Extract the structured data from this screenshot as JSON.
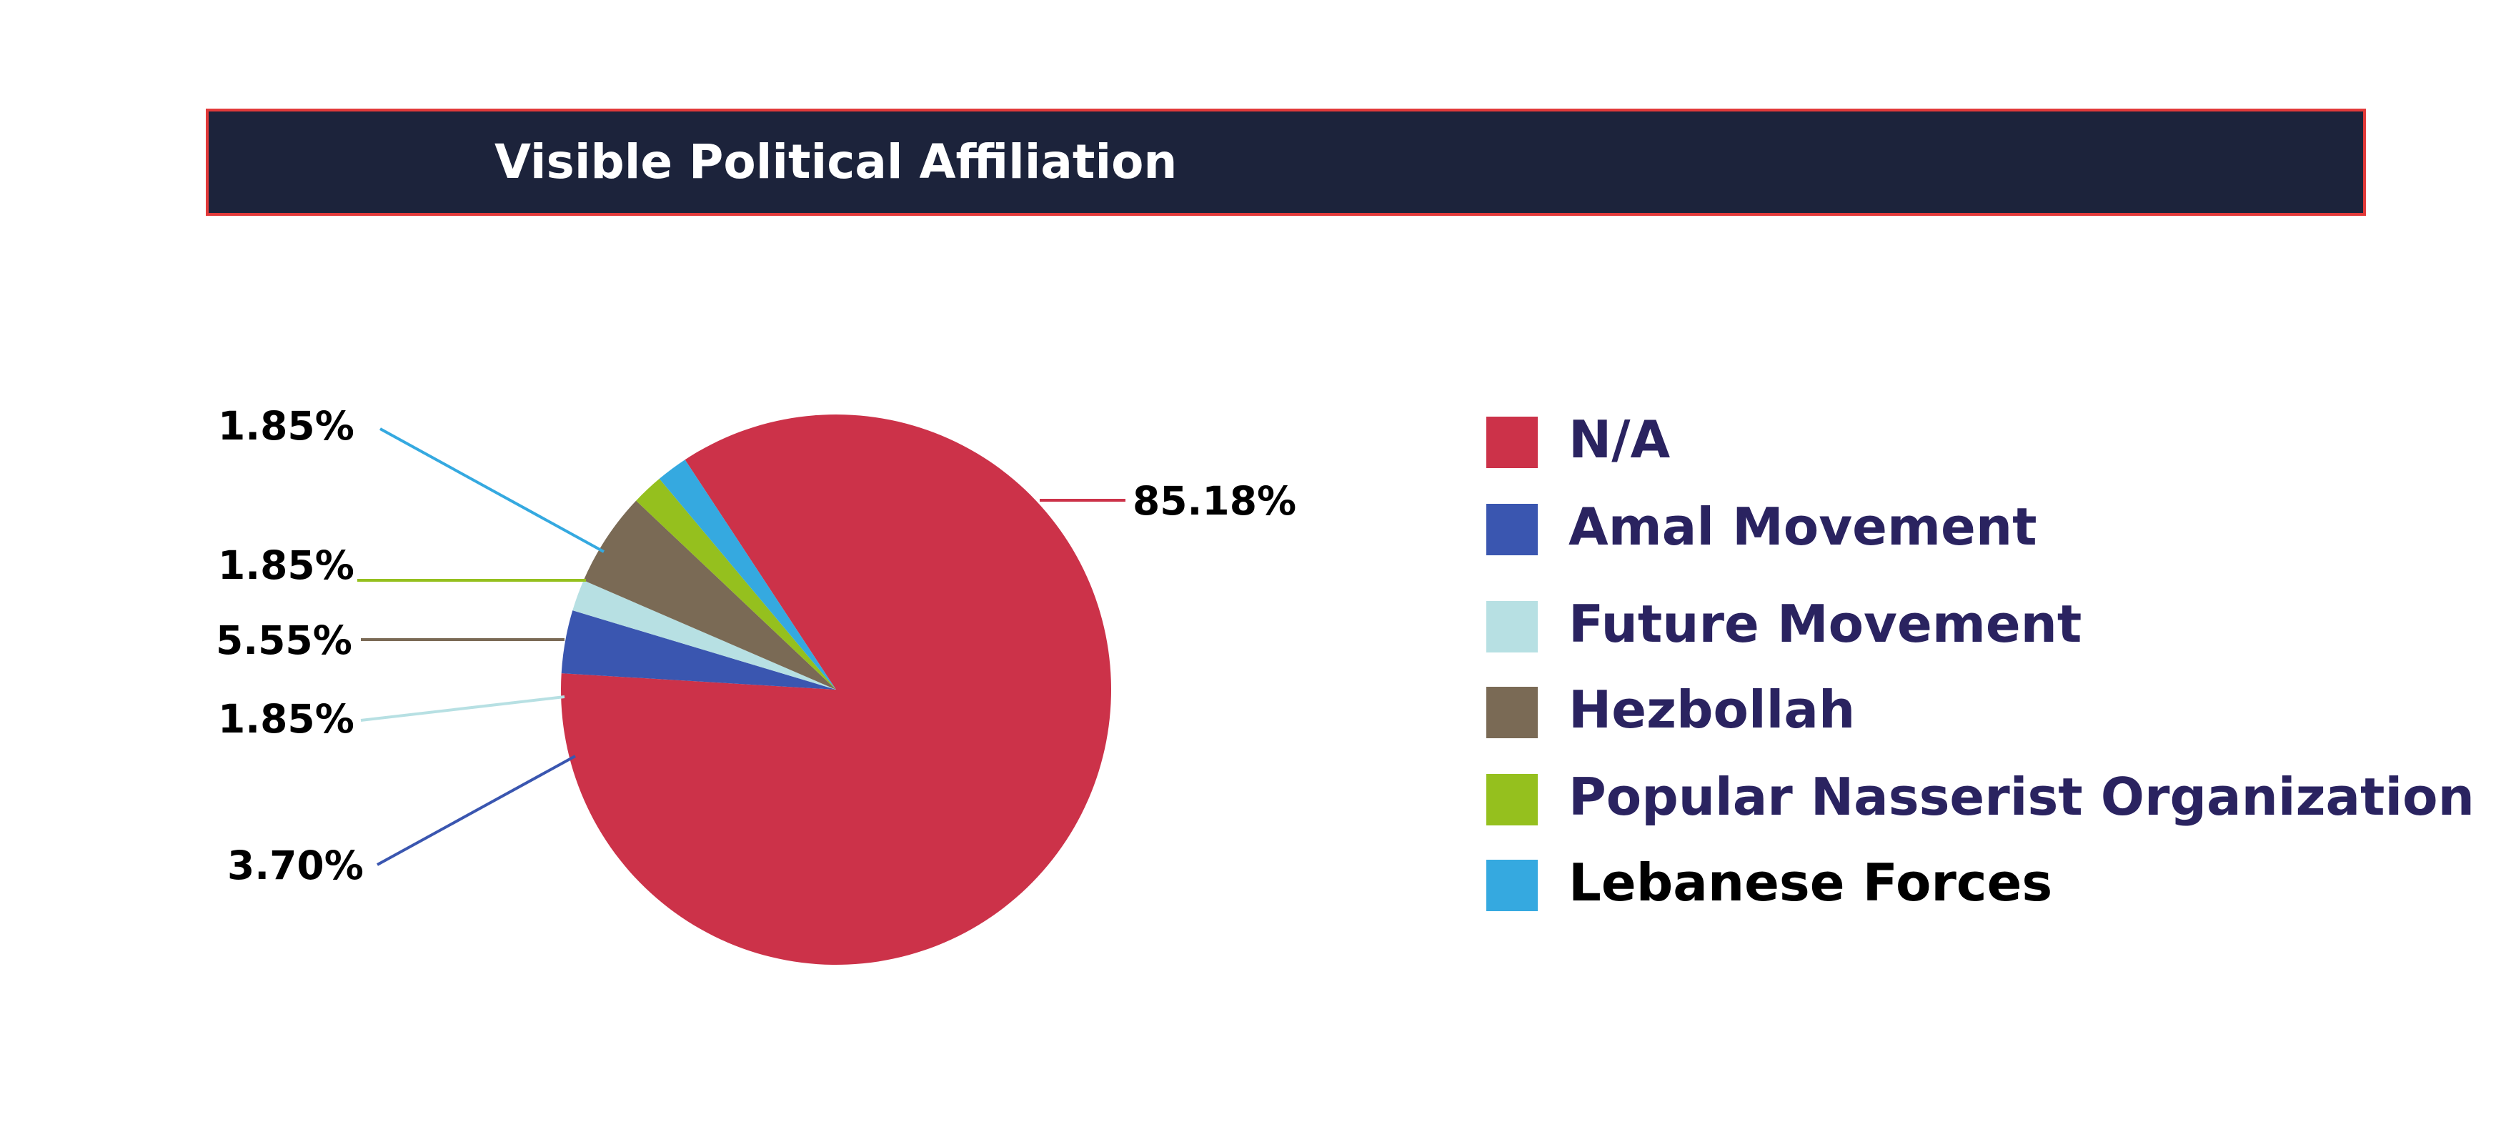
{
  "title": "Visible Political Affiliation",
  "colors": {
    "title_bg": "#1c233b",
    "title_border": "#e23a3a",
    "legend_text": "#2a2360",
    "legend_text_last": "#000000"
  },
  "chart_data": {
    "type": "pie",
    "title": "Visible Political Affiliation",
    "legend_position": "right",
    "slices": [
      {
        "label": "N/A",
        "value": 85.18,
        "display": "85.18%",
        "color": "#cc3249"
      },
      {
        "label": "Amal Movement",
        "value": 3.7,
        "display": "3.70%",
        "color": "#3a56b0"
      },
      {
        "label": "Future Movement",
        "value": 1.85,
        "display": "1.85%",
        "color": "#b7e0e3"
      },
      {
        "label": "Hezbollah",
        "value": 5.55,
        "display": "5.55%",
        "color": "#7a6a55"
      },
      {
        "label": "Popular Nasserist Organization",
        "value": 1.85,
        "display": "1.85%",
        "color": "#95c01e"
      },
      {
        "label": "Lebanese Forces",
        "value": 1.85,
        "display": "1.85%",
        "color": "#35a9e0"
      }
    ]
  }
}
